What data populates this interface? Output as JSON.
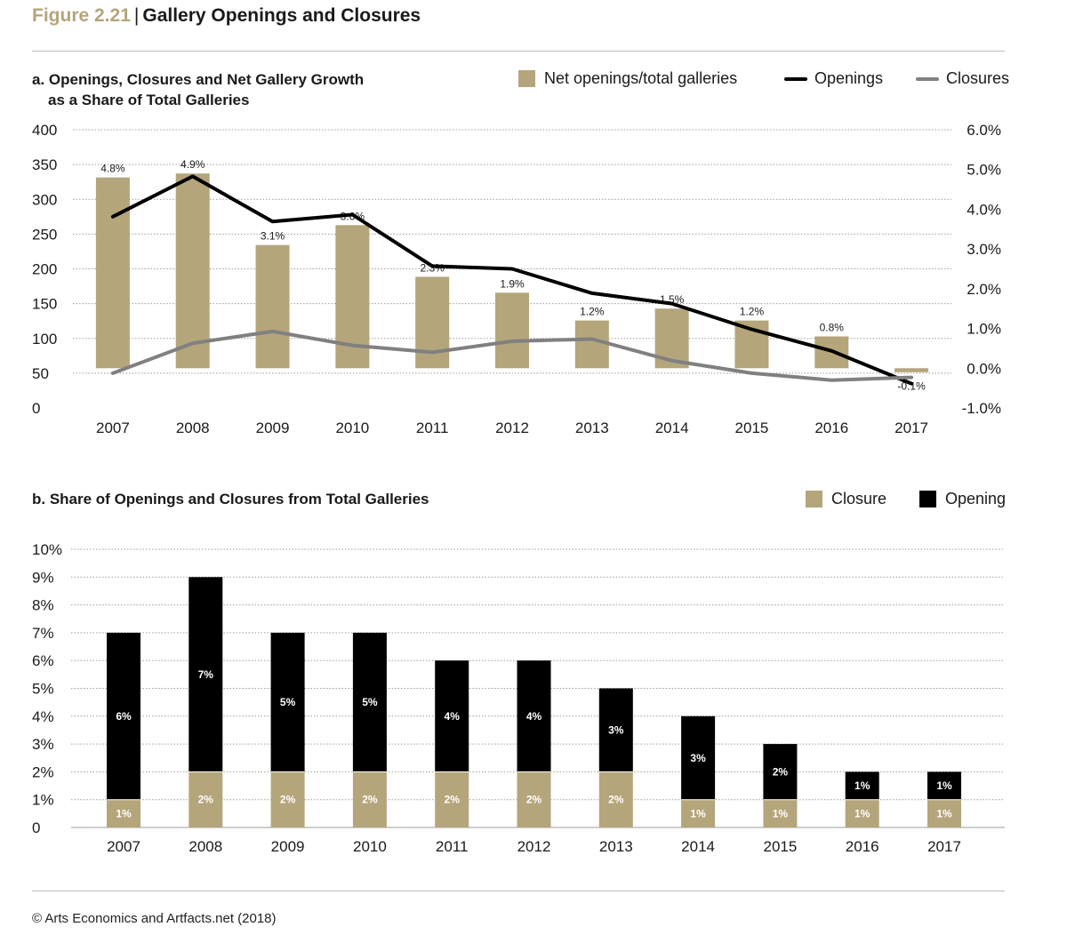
{
  "header": {
    "figure_number": "Figure 2.21",
    "title": "Gallery Openings and Closures"
  },
  "colors": {
    "tan": "#b5a57b",
    "black": "#000000",
    "grey": "#808080",
    "grid": "#9e9e9e"
  },
  "footer": {
    "source": "© Arts Economics and Artfacts.net (2018)"
  },
  "chart_data": [
    {
      "type": "bar",
      "title_line1": "a. Openings, Closures and Net Gallery Growth",
      "title_line2": "as a Share of Total Galleries",
      "legend": {
        "net": "Net openings/total galleries",
        "openings": "Openings",
        "closures": "Closures"
      },
      "categories": [
        "2007",
        "2008",
        "2009",
        "2010",
        "2011",
        "2012",
        "2013",
        "2014",
        "2015",
        "2016",
        "2017"
      ],
      "left_axis": {
        "ylim": [
          0,
          400
        ],
        "ticks": [
          0,
          50,
          100,
          150,
          200,
          250,
          300,
          350,
          400
        ],
        "tick_labels": [
          "0",
          "50",
          "100",
          "150",
          "200",
          "250",
          "300",
          "350",
          "400"
        ]
      },
      "right_axis": {
        "ylim": [
          -1.0,
          6.0
        ],
        "ticks": [
          -1,
          0,
          1,
          2,
          3,
          4,
          5,
          6
        ],
        "tick_labels": [
          "-1.0%",
          "0.0%",
          "1.0%",
          "2.0%",
          "3.0%",
          "4.0%",
          "5.0%",
          "6.0%"
        ]
      },
      "series": [
        {
          "name": "Net openings/total galleries",
          "type": "bar",
          "axis": "right",
          "values": [
            4.8,
            4.9,
            3.1,
            3.6,
            2.3,
            1.9,
            1.2,
            1.5,
            1.2,
            0.8,
            -0.1
          ],
          "labels": [
            "4.8%",
            "4.9%",
            "3.1%",
            "3.6%",
            "2.3%",
            "1.9%",
            "1.2%",
            "1.5%",
            "1.2%",
            "0.8%",
            "-0.1%"
          ]
        },
        {
          "name": "Openings",
          "type": "line",
          "axis": "left",
          "values": [
            275,
            333,
            268,
            278,
            204,
            200,
            165,
            150,
            113,
            82,
            35
          ]
        },
        {
          "name": "Closures",
          "type": "line",
          "axis": "left",
          "values": [
            50,
            93,
            110,
            90,
            80,
            96,
            99,
            68,
            50,
            40,
            44
          ]
        }
      ],
      "grid": true
    },
    {
      "type": "bar",
      "stacked": true,
      "title": "b. Share of Openings and Closures from Total Galleries",
      "legend": {
        "closure": "Closure",
        "opening": "Opening"
      },
      "categories": [
        "2007",
        "2008",
        "2009",
        "2010",
        "2011",
        "2012",
        "2013",
        "2014",
        "2015",
        "2016",
        "2017"
      ],
      "ylim": [
        0,
        10
      ],
      "ticks": [
        0,
        1,
        2,
        3,
        4,
        5,
        6,
        7,
        8,
        9,
        10
      ],
      "tick_labels": [
        "0",
        "1%",
        "2%",
        "3%",
        "4%",
        "5%",
        "6%",
        "7%",
        "8%",
        "9%",
        "10%"
      ],
      "series": [
        {
          "name": "Closure",
          "values": [
            1,
            2,
            2,
            2,
            2,
            2,
            2,
            1,
            1,
            1,
            1
          ],
          "labels": [
            "1%",
            "2%",
            "2%",
            "2%",
            "2%",
            "2%",
            "2%",
            "1%",
            "1%",
            "1%",
            "1%"
          ]
        },
        {
          "name": "Opening",
          "values": [
            6,
            7,
            5,
            5,
            4,
            4,
            3,
            3,
            2,
            1,
            1
          ],
          "labels": [
            "6%",
            "7%",
            "5%",
            "5%",
            "4%",
            "4%",
            "3%",
            "3%",
            "2%",
            "1%",
            "1%"
          ]
        }
      ],
      "grid": true
    }
  ]
}
